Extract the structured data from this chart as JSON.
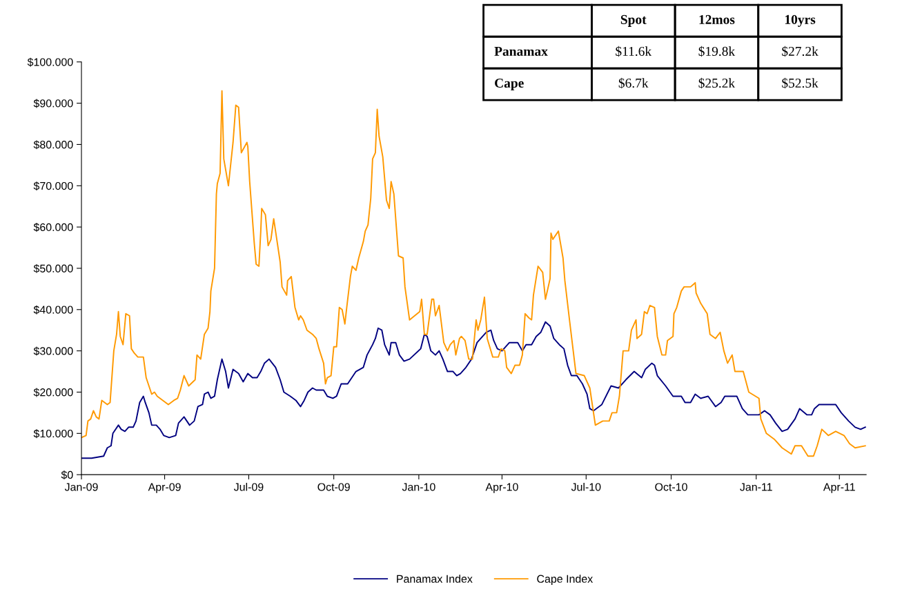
{
  "chart_data": [
    {
      "type": "line",
      "legend": "bottom",
      "line_style": "solid",
      "xlim": [
        "2009-01-01",
        "2011-04-30"
      ],
      "xticks": [
        {
          "value": "2009-01-01",
          "label": "Jan-09"
        },
        {
          "value": "2009-04-01",
          "label": "Apr-09"
        },
        {
          "value": "2009-07-01",
          "label": "Jul-09"
        },
        {
          "value": "2009-10-01",
          "label": "Oct-09"
        },
        {
          "value": "2010-01-01",
          "label": "Jan-10"
        },
        {
          "value": "2010-04-01",
          "label": "Apr-10"
        },
        {
          "value": "2010-07-01",
          "label": "Jul-10"
        },
        {
          "value": "2010-10-01",
          "label": "Oct-10"
        },
        {
          "value": "2011-01-01",
          "label": "Jan-11"
        },
        {
          "value": "2011-04-01",
          "label": "Apr-11"
        }
      ],
      "ylim": [
        0,
        100
      ],
      "yticks": [
        {
          "value": 0,
          "label": "$0"
        },
        {
          "value": 10,
          "label": "$10.000"
        },
        {
          "value": 20,
          "label": "$20.000"
        },
        {
          "value": 30,
          "label": "$30.000"
        },
        {
          "value": 40,
          "label": "$40.000"
        },
        {
          "value": 50,
          "label": "$50.000"
        },
        {
          "value": 60,
          "label": "$60.000"
        },
        {
          "value": 70,
          "label": "$70.000"
        },
        {
          "value": 80,
          "label": "$80.000"
        },
        {
          "value": 90,
          "label": "$90.000"
        },
        {
          "value": 100,
          "label": "$100.000"
        }
      ],
      "series": [
        {
          "name": "Panamax Index",
          "color": "#000080",
          "x": [
            "2009-01-01",
            "2009-01-12",
            "2009-01-25",
            "2009-01-29",
            "2009-02-02",
            "2009-02-04",
            "2009-02-10",
            "2009-02-13",
            "2009-02-17",
            "2009-02-21",
            "2009-02-26",
            "2009-03-01",
            "2009-03-05",
            "2009-03-09",
            "2009-03-11",
            "2009-03-15",
            "2009-03-18",
            "2009-03-23",
            "2009-03-27",
            "2009-03-31",
            "2009-04-06",
            "2009-04-13",
            "2009-04-16",
            "2009-04-22",
            "2009-04-28",
            "2009-05-03",
            "2009-05-07",
            "2009-05-12",
            "2009-05-14",
            "2009-05-18",
            "2009-05-21",
            "2009-05-25",
            "2009-05-28",
            "2009-06-02",
            "2009-06-06",
            "2009-06-09",
            "2009-06-14",
            "2009-06-20",
            "2009-06-25",
            "2009-06-30",
            "2009-07-05",
            "2009-07-10",
            "2009-07-14",
            "2009-07-18",
            "2009-07-23",
            "2009-07-30",
            "2009-08-04",
            "2009-08-08",
            "2009-08-15",
            "2009-08-21",
            "2009-08-26",
            "2009-08-30",
            "2009-09-03",
            "2009-09-08",
            "2009-09-12",
            "2009-09-20",
            "2009-09-24",
            "2009-09-30",
            "2009-10-04",
            "2009-10-09",
            "2009-10-16",
            "2009-10-19",
            "2009-10-25",
            "2009-11-02",
            "2009-11-06",
            "2009-11-12",
            "2009-11-15",
            "2009-11-18",
            "2009-11-22",
            "2009-11-25",
            "2009-11-30",
            "2009-12-02",
            "2009-12-07",
            "2009-12-11",
            "2009-12-16",
            "2009-12-22",
            "2010-01-03",
            "2010-01-07",
            "2010-01-10",
            "2010-01-14",
            "2010-01-19",
            "2010-01-23",
            "2010-01-27",
            "2010-02-01",
            "2010-02-07",
            "2010-02-11",
            "2010-02-15",
            "2010-02-21",
            "2010-02-27",
            "2010-03-05",
            "2010-03-09",
            "2010-03-15",
            "2010-03-20",
            "2010-03-23",
            "2010-03-27",
            "2010-04-01",
            "2010-04-05",
            "2010-04-09",
            "2010-04-18",
            "2010-04-23",
            "2010-04-27",
            "2010-05-03",
            "2010-05-08",
            "2010-05-13",
            "2010-05-18",
            "2010-05-23",
            "2010-05-27",
            "2010-06-02",
            "2010-06-07",
            "2010-06-11",
            "2010-06-15",
            "2010-06-21",
            "2010-06-27",
            "2010-07-02",
            "2010-07-05",
            "2010-07-09",
            "2010-07-18",
            "2010-07-28",
            "2010-08-05",
            "2010-08-13",
            "2010-08-22",
            "2010-08-30",
            "2010-09-03",
            "2010-09-10",
            "2010-09-13",
            "2010-09-16",
            "2010-09-25",
            "2010-10-03",
            "2010-10-12",
            "2010-10-16",
            "2010-10-22",
            "2010-10-27",
            "2010-11-02",
            "2010-11-10",
            "2010-11-18",
            "2010-11-24",
            "2010-11-28",
            "2010-12-11",
            "2010-12-17",
            "2010-12-23",
            "2011-01-04",
            "2011-01-10",
            "2011-01-16",
            "2011-01-22",
            "2011-01-29",
            "2011-02-04",
            "2011-02-12",
            "2011-02-17",
            "2011-02-25",
            "2011-03-02",
            "2011-03-05",
            "2011-03-10",
            "2011-03-28",
            "2011-04-03",
            "2011-04-11",
            "2011-04-18",
            "2011-04-24",
            "2011-04-29"
          ],
          "values": [
            4,
            4,
            4.5,
            6.5,
            7,
            10,
            12,
            11,
            10.5,
            11.5,
            11.5,
            13,
            17.5,
            19,
            17.5,
            15,
            12,
            12,
            11,
            9.5,
            9,
            9.5,
            12.5,
            14,
            12,
            13,
            16.5,
            17,
            19.5,
            20,
            18.5,
            19,
            23,
            28,
            25,
            21,
            25.5,
            24.5,
            22.5,
            24.5,
            23.5,
            23.5,
            25,
            27,
            28,
            26,
            23,
            20,
            19,
            18,
            16.5,
            18,
            20,
            21,
            20.5,
            20.5,
            19,
            18.5,
            19,
            22,
            22,
            23,
            25,
            26,
            29,
            31.5,
            33,
            35.5,
            35,
            31.5,
            29,
            32,
            32,
            29,
            27.5,
            28,
            30.5,
            34,
            33.5,
            30,
            29,
            30,
            28,
            25,
            25,
            24,
            24.5,
            26,
            28,
            32,
            33,
            34.5,
            35,
            32.5,
            30.5,
            30,
            31,
            32,
            32,
            30,
            31.5,
            31.5,
            33.5,
            34.5,
            37,
            36,
            33,
            31.5,
            30.5,
            26.5,
            24,
            24,
            22,
            19.5,
            16,
            15.5,
            17,
            21.5,
            21,
            23,
            25,
            23.5,
            25.5,
            27,
            26.5,
            24,
            21.5,
            19,
            19,
            17.5,
            17.5,
            19.5,
            18.5,
            19,
            16.5,
            17.5,
            19,
            19,
            16,
            14.5,
            14.5,
            15.5,
            14.5,
            12.5,
            10.5,
            11,
            13.5,
            16,
            14.5,
            14.5,
            16,
            17,
            17,
            15,
            13,
            11.5,
            11,
            11.5
          ]
        },
        {
          "name": "Cape Index",
          "color": "#ff9900",
          "x": [
            "2009-01-01",
            "2009-01-06",
            "2009-01-08",
            "2009-01-11",
            "2009-01-14",
            "2009-01-17",
            "2009-01-20",
            "2009-01-23",
            "2009-01-29",
            "2009-02-01",
            "2009-02-05",
            "2009-02-08",
            "2009-02-10",
            "2009-02-12",
            "2009-02-15",
            "2009-02-18",
            "2009-02-22",
            "2009-02-24",
            "2009-02-27",
            "2009-03-03",
            "2009-03-09",
            "2009-03-12",
            "2009-03-18",
            "2009-03-21",
            "2009-03-24",
            "2009-03-30",
            "2009-04-05",
            "2009-04-11",
            "2009-04-15",
            "2009-04-18",
            "2009-04-22",
            "2009-04-27",
            "2009-05-04",
            "2009-05-06",
            "2009-05-10",
            "2009-05-14",
            "2009-05-18",
            "2009-05-20",
            "2009-05-21",
            "2009-05-25",
            "2009-05-27",
            "2009-05-28",
            "2009-05-31",
            "2009-06-02",
            "2009-06-04",
            "2009-06-09",
            "2009-06-14",
            "2009-06-17",
            "2009-06-20",
            "2009-06-23",
            "2009-06-29",
            "2009-06-30",
            "2009-07-02",
            "2009-07-07",
            "2009-07-09",
            "2009-07-12",
            "2009-07-14",
            "2009-07-15",
            "2009-07-19",
            "2009-07-22",
            "2009-07-25",
            "2009-07-28",
            "2009-07-31",
            "2009-08-04",
            "2009-08-06",
            "2009-08-11",
            "2009-08-12",
            "2009-08-16",
            "2009-08-20",
            "2009-08-24",
            "2009-08-26",
            "2009-08-29",
            "2009-09-02",
            "2009-09-08",
            "2009-09-12",
            "2009-09-15",
            "2009-09-20",
            "2009-09-22",
            "2009-09-24",
            "2009-09-28",
            "2009-10-01",
            "2009-10-04",
            "2009-10-07",
            "2009-10-10",
            "2009-10-13",
            "2009-10-15",
            "2009-10-19",
            "2009-10-21",
            "2009-10-25",
            "2009-10-28",
            "2009-11-02",
            "2009-11-04",
            "2009-11-07",
            "2009-11-10",
            "2009-11-12",
            "2009-11-15",
            "2009-11-17",
            "2009-11-19",
            "2009-11-23",
            "2009-11-27",
            "2009-11-30",
            "2009-12-02",
            "2009-12-05",
            "2009-12-10",
            "2009-12-15",
            "2009-12-17",
            "2009-12-22",
            "2010-01-02",
            "2010-01-04",
            "2010-01-07",
            "2010-01-10",
            "2010-01-15",
            "2010-01-17",
            "2010-01-19",
            "2010-01-23",
            "2010-01-28",
            "2010-02-01",
            "2010-02-04",
            "2010-02-08",
            "2010-02-10",
            "2010-02-14",
            "2010-02-16",
            "2010-02-20",
            "2010-02-24",
            "2010-02-28",
            "2010-03-04",
            "2010-03-06",
            "2010-03-09",
            "2010-03-13",
            "2010-03-16",
            "2010-03-22",
            "2010-03-28",
            "2010-03-31",
            "2010-04-04",
            "2010-04-06",
            "2010-04-11",
            "2010-04-15",
            "2010-04-20",
            "2010-04-23",
            "2010-04-26",
            "2010-04-30",
            "2010-05-03",
            "2010-05-05",
            "2010-05-10",
            "2010-05-15",
            "2010-05-18",
            "2010-05-23",
            "2010-05-24",
            "2010-05-26",
            "2010-06-01",
            "2010-06-06",
            "2010-06-08",
            "2010-06-13",
            "2010-06-20",
            "2010-06-29",
            "2010-07-05",
            "2010-07-11",
            "2010-07-19",
            "2010-07-26",
            "2010-07-29",
            "2010-08-03",
            "2010-08-06",
            "2010-08-10",
            "2010-08-16",
            "2010-08-19",
            "2010-08-24",
            "2010-08-25",
            "2010-08-30",
            "2010-09-02",
            "2010-09-05",
            "2010-09-08",
            "2010-09-13",
            "2010-09-16",
            "2010-09-21",
            "2010-09-25",
            "2010-09-27",
            "2010-10-03",
            "2010-10-04",
            "2010-10-07",
            "2010-10-12",
            "2010-10-15",
            "2010-10-22",
            "2010-10-27",
            "2010-10-28",
            "2010-11-02",
            "2010-11-09",
            "2010-11-12",
            "2010-11-18",
            "2010-11-23",
            "2010-11-27",
            "2010-12-01",
            "2010-12-06",
            "2010-12-09",
            "2010-12-18",
            "2010-12-24",
            "2011-01-04",
            "2011-01-06",
            "2011-01-12",
            "2011-01-21",
            "2011-01-29",
            "2011-02-08",
            "2011-02-12",
            "2011-02-19",
            "2011-02-26",
            "2011-03-04",
            "2011-03-08",
            "2011-03-13",
            "2011-03-20",
            "2011-03-28",
            "2011-04-06",
            "2011-04-12",
            "2011-04-18",
            "2011-04-29"
          ],
          "values": [
            9,
            9.5,
            13,
            13.5,
            15.5,
            14,
            13.5,
            18,
            17,
            17.5,
            30,
            34,
            39.5,
            33.5,
            31.5,
            39,
            38.5,
            30.5,
            29.5,
            28.5,
            28.5,
            23.5,
            19.5,
            20,
            19,
            18,
            17,
            18,
            18.5,
            20.5,
            24,
            21.5,
            23,
            29,
            28,
            34,
            35.5,
            39.5,
            44.5,
            50,
            68,
            70.5,
            73,
            93,
            76.5,
            70,
            80.5,
            89.5,
            89,
            78,
            80.5,
            79.5,
            71,
            56,
            51,
            50.5,
            59,
            64.5,
            63,
            55.5,
            57,
            62,
            57.5,
            51.5,
            45.5,
            43.5,
            47,
            48,
            40.5,
            37.5,
            38.5,
            37.5,
            35,
            34,
            33,
            30.5,
            27,
            22,
            23.5,
            24,
            31,
            31,
            40.5,
            40,
            36.5,
            40.5,
            48,
            50.5,
            49.5,
            52.5,
            56.5,
            59,
            60.5,
            67,
            76.5,
            78,
            88.5,
            82,
            77,
            66.5,
            64.5,
            71,
            68,
            53,
            52.5,
            45.5,
            37.5,
            39.5,
            42.5,
            34,
            34,
            42.5,
            42.5,
            38.5,
            41,
            32,
            30,
            31.5,
            32.5,
            29,
            33,
            33.5,
            32.5,
            28,
            28,
            37.5,
            35,
            37.5,
            43,
            33,
            28.5,
            28.5,
            30.5,
            30,
            26,
            24.5,
            26.5,
            26.5,
            29,
            39,
            38,
            37.5,
            43.5,
            50.5,
            49,
            42.5,
            47.5,
            58.5,
            57,
            59,
            52.5,
            47,
            37.5,
            24.5,
            24,
            21,
            12,
            13,
            13,
            15,
            15,
            19,
            30,
            30,
            35,
            37.5,
            33,
            34,
            39.5,
            39,
            41,
            40.5,
            33.5,
            29,
            29,
            32.5,
            33.5,
            39,
            40.5,
            44.5,
            45.5,
            45.5,
            46.5,
            44,
            41.5,
            39,
            34,
            33,
            34.5,
            30,
            27,
            29,
            25,
            25,
            20,
            18.5,
            13.5,
            10,
            8.5,
            6.5,
            5,
            7,
            7,
            4.5,
            4.5,
            7,
            11,
            9.5,
            10.5,
            9.5,
            7.5,
            6.5,
            7
          ]
        }
      ]
    },
    {
      "type": "other",
      "categories": [
        null,
        "Spot",
        "12mos",
        "10yrs"
      ],
      "y_categories": [
        "Panamax",
        "Cape"
      ],
      "cell_labels": [
        [
          "$11.6k",
          "$19.8k",
          "$27.2k"
        ],
        [
          "$6.7k",
          "$25.2k",
          "$52.5k"
        ]
      ]
    }
  ]
}
